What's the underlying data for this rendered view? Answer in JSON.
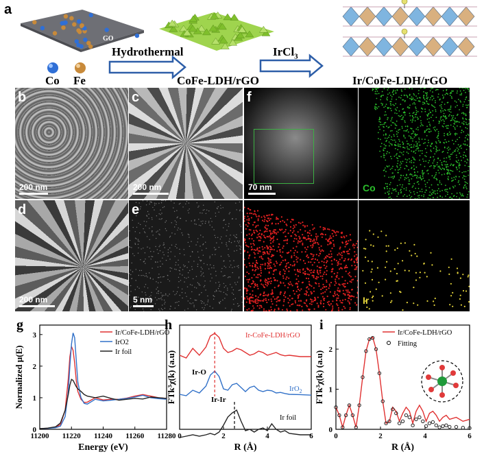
{
  "schematic": {
    "panel_label": "a",
    "go_label": "GO",
    "co_label": "Co",
    "fe_label": "Fe",
    "step1": "Hydrothermal",
    "step2_prefix": "IrCl",
    "step2_sub": "3",
    "product1": "CoFe-LDH/rGO",
    "product2": "Ir/CoFe-LDH/rGO",
    "colors": {
      "co": "#2f6fd6",
      "fe": "#c88a3a",
      "sheet": "#6e6f75",
      "ldh": "#8fcf3c",
      "octa_blue": "#7fb5e0",
      "octa_tan": "#d9b07f"
    }
  },
  "micrographs": {
    "b": {
      "label": "b",
      "scale": "200 nm"
    },
    "c": {
      "label": "c",
      "scale": "200 nm"
    },
    "d": {
      "label": "d",
      "scale": "200 nm"
    },
    "e": {
      "label": "e",
      "scale": "5 nm"
    },
    "f": {
      "label": "f",
      "scale": "70 nm"
    },
    "maps": {
      "co": "Co",
      "fe": "Fe",
      "ir": "Ir"
    },
    "colors": {
      "co": "#2bbf2b",
      "fe": "#e02020",
      "ir": "#e2d23a",
      "scale_text": "#ffffff"
    }
  },
  "chart_data": [
    {
      "panel": "g",
      "type": "line",
      "xlabel": "Energy (eV)",
      "ylabel": "Normalized μ(E)",
      "xlim": [
        11200,
        11280
      ],
      "ylim": [
        0,
        3.3
      ],
      "xticks": [
        11200,
        11220,
        11240,
        11260,
        11280
      ],
      "yticks": [
        0,
        1,
        2,
        3
      ],
      "legend_position": "top-right",
      "series": [
        {
          "name": "Ir/CoFe-LDH/rGO",
          "color": "#e03030",
          "x": [
            11200,
            11205,
            11210,
            11213,
            11216,
            11218,
            11219,
            11220,
            11221,
            11222,
            11223,
            11224,
            11226,
            11228,
            11230,
            11235,
            11240,
            11245,
            11250,
            11255,
            11260,
            11265,
            11270,
            11275,
            11280
          ],
          "y": [
            0.02,
            0.03,
            0.06,
            0.15,
            0.6,
            1.6,
            2.3,
            2.62,
            2.5,
            2.1,
            1.55,
            1.2,
            0.95,
            0.85,
            0.86,
            1.0,
            0.93,
            0.95,
            0.95,
            0.99,
            1.05,
            1.1,
            1.05,
            1.0,
            0.98
          ]
        },
        {
          "name": "IrO2",
          "color": "#3070c8",
          "x": [
            11200,
            11205,
            11210,
            11213,
            11216,
            11218,
            11219,
            11220,
            11221,
            11222,
            11223,
            11224,
            11226,
            11228,
            11230,
            11235,
            11240,
            11245,
            11250,
            11255,
            11260,
            11265,
            11270,
            11275,
            11280
          ],
          "y": [
            0.02,
            0.03,
            0.05,
            0.1,
            0.4,
            1.2,
            2.0,
            2.7,
            3.05,
            2.9,
            2.2,
            1.5,
            1.0,
            0.82,
            0.8,
            0.95,
            0.9,
            0.92,
            0.95,
            0.98,
            1.02,
            1.08,
            1.0,
            0.97,
            0.95
          ]
        },
        {
          "name": "Ir foil",
          "color": "#222222",
          "x": [
            11200,
            11205,
            11210,
            11213,
            11216,
            11218,
            11219,
            11220,
            11221,
            11222,
            11223,
            11224,
            11226,
            11228,
            11230,
            11235,
            11240,
            11245,
            11250,
            11255,
            11260,
            11265,
            11270,
            11275,
            11280
          ],
          "y": [
            0.02,
            0.04,
            0.08,
            0.2,
            0.6,
            1.1,
            1.4,
            1.58,
            1.55,
            1.45,
            1.35,
            1.28,
            1.2,
            1.1,
            1.05,
            1.0,
            1.05,
            0.98,
            0.92,
            0.95,
            0.98,
            0.96,
            1.02,
            1.0,
            0.98
          ]
        }
      ]
    },
    {
      "panel": "h",
      "type": "line",
      "xlabel": "R (Å)",
      "ylabel": "FTk³χ(k) (a.u)",
      "xlim": [
        0,
        6
      ],
      "xticks": [
        0,
        2,
        4,
        6
      ],
      "series": [
        {
          "name": "Ir-CoFe-LDH/rGO",
          "color": "#e03030",
          "x": [
            0,
            0.3,
            0.6,
            0.9,
            1.2,
            1.4,
            1.6,
            1.8,
            2.0,
            2.2,
            2.4,
            2.6,
            2.8,
            3.0,
            3.2,
            3.4,
            3.6,
            3.8,
            4.0,
            4.2,
            4.4,
            4.6,
            4.8,
            5.0,
            5.5,
            6.0
          ],
          "y": [
            0.2,
            0.1,
            0.45,
            0.2,
            0.5,
            0.9,
            1.0,
            0.85,
            0.45,
            0.3,
            0.35,
            0.45,
            0.4,
            0.3,
            0.2,
            0.25,
            0.35,
            0.3,
            0.2,
            0.25,
            0.3,
            0.22,
            0.18,
            0.2,
            0.15,
            0.15
          ]
        },
        {
          "name": "IrO2",
          "color": "#3070c8",
          "x": [
            0,
            0.3,
            0.6,
            0.9,
            1.2,
            1.4,
            1.6,
            1.8,
            2.0,
            2.2,
            2.4,
            2.6,
            2.8,
            3.0,
            3.2,
            3.4,
            3.6,
            3.8,
            4.0,
            4.2,
            4.4,
            4.6,
            4.8,
            5.0,
            5.5,
            6.0
          ],
          "y": [
            0.15,
            0.1,
            0.3,
            0.2,
            0.45,
            0.85,
            1.0,
            0.8,
            0.35,
            0.3,
            0.5,
            0.55,
            0.4,
            0.25,
            0.4,
            0.45,
            0.3,
            0.25,
            0.3,
            0.28,
            0.2,
            0.22,
            0.18,
            0.15,
            0.14,
            0.12
          ]
        },
        {
          "name": "Ir foil",
          "color": "#222222",
          "x": [
            0,
            0.3,
            0.6,
            0.9,
            1.2,
            1.4,
            1.6,
            1.8,
            2.0,
            2.2,
            2.4,
            2.6,
            2.8,
            3.0,
            3.2,
            3.4,
            3.6,
            3.8,
            4.0,
            4.2,
            4.4,
            4.6,
            4.8,
            5.0,
            5.5,
            6.0
          ],
          "y": [
            0.0,
            0.05,
            0.1,
            0.05,
            0.1,
            0.15,
            0.1,
            0.2,
            0.45,
            0.75,
            0.9,
            1.0,
            0.6,
            0.25,
            0.3,
            0.2,
            0.3,
            0.35,
            0.25,
            0.5,
            0.3,
            0.2,
            0.25,
            0.15,
            0.1,
            0.1
          ]
        }
      ],
      "annotations": [
        "Ir-O",
        "Ir-Ir",
        "Ir-CoFe-LDH/rGO",
        "Ir foil"
      ],
      "iro2_label_main": "IrO",
      "iro2_label_sub": "2"
    },
    {
      "panel": "i",
      "type": "line",
      "xlabel": "R (Å)",
      "ylabel": "FTk³χ(k) (a.u)",
      "xlim": [
        0,
        6
      ],
      "ylim": [
        0,
        2.6
      ],
      "xticks": [
        0,
        2,
        4,
        6
      ],
      "yticks": [
        0,
        1,
        2
      ],
      "legend_position": "top-right",
      "series": [
        {
          "name": "Ir/CoFe-LDH/rGO",
          "color": "#e03030",
          "x": [
            0,
            0.15,
            0.3,
            0.45,
            0.6,
            0.75,
            0.9,
            1.05,
            1.2,
            1.35,
            1.5,
            1.65,
            1.8,
            1.95,
            2.1,
            2.25,
            2.4,
            2.55,
            2.7,
            2.85,
            3.0,
            3.15,
            3.3,
            3.45,
            3.6,
            3.75,
            3.9,
            4.05,
            4.2,
            4.35,
            4.5,
            4.65,
            4.8,
            4.95,
            5.1,
            5.4,
            5.7,
            6.0
          ],
          "y": [
            0.55,
            0.35,
            0.05,
            0.35,
            0.6,
            0.35,
            0.05,
            0.6,
            1.3,
            1.95,
            2.25,
            2.3,
            2.0,
            1.4,
            0.7,
            0.15,
            0.2,
            0.55,
            0.45,
            0.2,
            0.4,
            0.55,
            0.45,
            0.15,
            0.45,
            0.6,
            0.45,
            0.2,
            0.4,
            0.45,
            0.35,
            0.2,
            0.3,
            0.35,
            0.25,
            0.3,
            0.2,
            0.25
          ]
        },
        {
          "name": "Fitting",
          "color": "#222222",
          "x": [
            0,
            0.15,
            0.3,
            0.45,
            0.6,
            0.75,
            0.9,
            1.05,
            1.2,
            1.35,
            1.5,
            1.65,
            1.8,
            1.95,
            2.1,
            2.25,
            2.4,
            2.55,
            2.7,
            2.85,
            3.0,
            3.15,
            3.3,
            3.45,
            3.6,
            3.75,
            3.9,
            4.05,
            4.2,
            4.35,
            4.5,
            4.65,
            4.8,
            4.95,
            5.1,
            5.4,
            5.7,
            6.0
          ],
          "y": [
            0.55,
            0.35,
            0.05,
            0.35,
            0.6,
            0.35,
            0.05,
            0.6,
            1.3,
            1.95,
            2.25,
            2.28,
            2.0,
            1.4,
            0.7,
            0.15,
            0.2,
            0.5,
            0.4,
            0.15,
            0.2,
            0.35,
            0.3,
            0.1,
            0.25,
            0.3,
            0.2,
            0.08,
            0.15,
            0.18,
            0.1,
            0.05,
            0.08,
            0.1,
            0.06,
            0.06,
            0.04,
            0.03
          ]
        }
      ]
    }
  ]
}
